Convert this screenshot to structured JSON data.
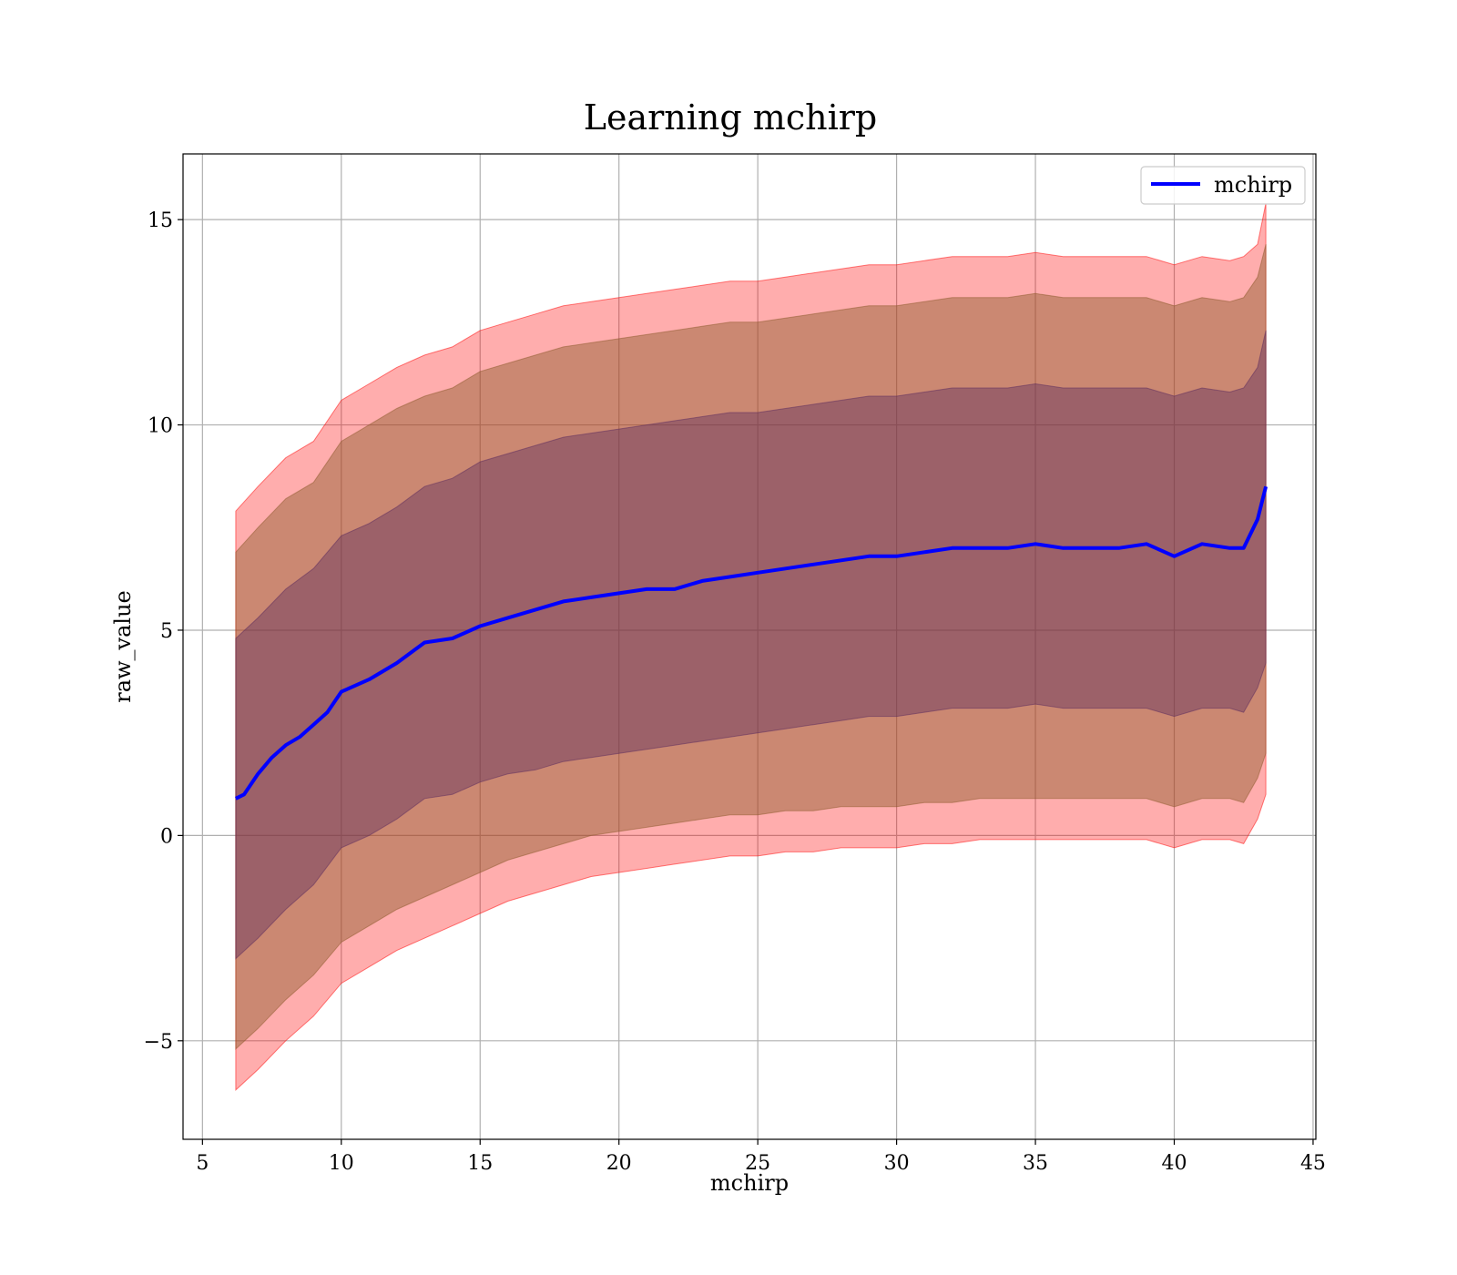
{
  "chart_data": {
    "type": "line",
    "title": "Learning mchirp",
    "xlabel": "mchirp",
    "ylabel": "raw_value",
    "xlim": [
      4.3,
      45.1
    ],
    "ylim": [
      -7.4,
      16.6
    ],
    "xticks": [
      5,
      10,
      15,
      20,
      25,
      30,
      35,
      40,
      45
    ],
    "yticks": [
      -5,
      0,
      5,
      10,
      15
    ],
    "ytick_labels": [
      "−5",
      "0",
      "5",
      "10",
      "15"
    ],
    "grid": true,
    "legend": {
      "position": "top-right",
      "entries": [
        {
          "label": "mchirp",
          "color": "#0000ff"
        }
      ]
    },
    "series": [
      {
        "name": "mchirp",
        "color": "#0000ff",
        "x": [
          6.2,
          6.5,
          7.0,
          7.5,
          8.0,
          8.5,
          9.0,
          9.5,
          10.0,
          11.0,
          12.0,
          13.0,
          14.0,
          15.0,
          16.0,
          17.0,
          18.0,
          19.0,
          20.0,
          21.0,
          22.0,
          23.0,
          24.0,
          25.0,
          26.0,
          27.0,
          28.0,
          29.0,
          30.0,
          31.0,
          32.0,
          33.0,
          34.0,
          35.0,
          36.0,
          37.0,
          38.0,
          39.0,
          40.0,
          41.0,
          42.0,
          42.5,
          43.0,
          43.3
        ],
        "y": [
          0.9,
          1.0,
          1.5,
          1.9,
          2.2,
          2.4,
          2.7,
          3.0,
          3.5,
          3.8,
          4.2,
          4.7,
          4.8,
          5.1,
          5.3,
          5.5,
          5.7,
          5.8,
          5.9,
          6.0,
          6.0,
          6.2,
          6.3,
          6.4,
          6.5,
          6.6,
          6.7,
          6.8,
          6.8,
          6.9,
          7.0,
          7.0,
          7.0,
          7.1,
          7.0,
          7.0,
          7.0,
          7.1,
          6.8,
          7.1,
          7.0,
          7.0,
          7.7,
          8.5
        ]
      }
    ],
    "bands": [
      {
        "name": "",
        "color": "#ff0000",
        "opacity": 0.32,
        "x": [
          6.2,
          7.0,
          8.0,
          9.0,
          10.0,
          11.0,
          12.0,
          13.0,
          14.0,
          15.0,
          16.0,
          17.0,
          18.0,
          19.0,
          20.0,
          21.0,
          22.0,
          23.0,
          24.0,
          25.0,
          26.0,
          27.0,
          28.0,
          29.0,
          30.0,
          31.0,
          32.0,
          33.0,
          34.0,
          35.0,
          36.0,
          37.0,
          38.0,
          39.0,
          40.0,
          41.0,
          42.0,
          42.5,
          43.0,
          43.3
        ],
        "upper": [
          7.9,
          8.5,
          9.2,
          9.6,
          10.6,
          11.0,
          11.4,
          11.7,
          11.9,
          12.3,
          12.5,
          12.7,
          12.9,
          13.0,
          13.1,
          13.2,
          13.3,
          13.4,
          13.5,
          13.5,
          13.6,
          13.7,
          13.8,
          13.9,
          13.9,
          14.0,
          14.1,
          14.1,
          14.1,
          14.2,
          14.1,
          14.1,
          14.1,
          14.1,
          13.9,
          14.1,
          14.0,
          14.1,
          14.4,
          15.4
        ],
        "lower": [
          -6.2,
          -5.7,
          -5.0,
          -4.4,
          -3.6,
          -3.2,
          -2.8,
          -2.5,
          -2.2,
          -1.9,
          -1.6,
          -1.4,
          -1.2,
          -1.0,
          -0.9,
          -0.8,
          -0.7,
          -0.6,
          -0.5,
          -0.5,
          -0.4,
          -0.4,
          -0.3,
          -0.3,
          -0.3,
          -0.2,
          -0.2,
          -0.1,
          -0.1,
          -0.1,
          -0.1,
          -0.1,
          -0.1,
          -0.1,
          -0.3,
          -0.1,
          -0.1,
          -0.2,
          0.4,
          1.0
        ]
      },
      {
        "name": "",
        "color": "#8b5a2b",
        "opacity": 0.45,
        "x": [
          6.2,
          7.0,
          8.0,
          9.0,
          10.0,
          11.0,
          12.0,
          13.0,
          14.0,
          15.0,
          16.0,
          17.0,
          18.0,
          19.0,
          20.0,
          21.0,
          22.0,
          23.0,
          24.0,
          25.0,
          26.0,
          27.0,
          28.0,
          29.0,
          30.0,
          31.0,
          32.0,
          33.0,
          34.0,
          35.0,
          36.0,
          37.0,
          38.0,
          39.0,
          40.0,
          41.0,
          42.0,
          42.5,
          43.0,
          43.3
        ],
        "upper": [
          6.9,
          7.5,
          8.2,
          8.6,
          9.6,
          10.0,
          10.4,
          10.7,
          10.9,
          11.3,
          11.5,
          11.7,
          11.9,
          12.0,
          12.1,
          12.2,
          12.3,
          12.4,
          12.5,
          12.5,
          12.6,
          12.7,
          12.8,
          12.9,
          12.9,
          13.0,
          13.1,
          13.1,
          13.1,
          13.2,
          13.1,
          13.1,
          13.1,
          13.1,
          12.9,
          13.1,
          13.0,
          13.1,
          13.6,
          14.4
        ],
        "lower": [
          -5.2,
          -4.7,
          -4.0,
          -3.4,
          -2.6,
          -2.2,
          -1.8,
          -1.5,
          -1.2,
          -0.9,
          -0.6,
          -0.4,
          -0.2,
          0.0,
          0.1,
          0.2,
          0.3,
          0.4,
          0.5,
          0.5,
          0.6,
          0.6,
          0.7,
          0.7,
          0.7,
          0.8,
          0.8,
          0.9,
          0.9,
          0.9,
          0.9,
          0.9,
          0.9,
          0.9,
          0.7,
          0.9,
          0.9,
          0.8,
          1.4,
          2.0
        ]
      },
      {
        "name": "",
        "color": "#5a2a5e",
        "opacity": 0.42,
        "x": [
          6.2,
          7.0,
          8.0,
          9.0,
          10.0,
          11.0,
          12.0,
          13.0,
          14.0,
          15.0,
          16.0,
          17.0,
          18.0,
          19.0,
          20.0,
          21.0,
          22.0,
          23.0,
          24.0,
          25.0,
          26.0,
          27.0,
          28.0,
          29.0,
          30.0,
          31.0,
          32.0,
          33.0,
          34.0,
          35.0,
          36.0,
          37.0,
          38.0,
          39.0,
          40.0,
          41.0,
          42.0,
          42.5,
          43.0,
          43.3
        ],
        "upper": [
          4.8,
          5.3,
          6.0,
          6.5,
          7.3,
          7.6,
          8.0,
          8.5,
          8.7,
          9.1,
          9.3,
          9.5,
          9.7,
          9.8,
          9.9,
          10.0,
          10.1,
          10.2,
          10.3,
          10.3,
          10.4,
          10.5,
          10.6,
          10.7,
          10.7,
          10.8,
          10.9,
          10.9,
          10.9,
          11.0,
          10.9,
          10.9,
          10.9,
          10.9,
          10.7,
          10.9,
          10.8,
          10.9,
          11.4,
          12.3
        ],
        "lower": [
          -3.0,
          -2.5,
          -1.8,
          -1.2,
          -0.3,
          0.0,
          0.4,
          0.9,
          1.0,
          1.3,
          1.5,
          1.6,
          1.8,
          1.9,
          2.0,
          2.1,
          2.2,
          2.3,
          2.4,
          2.5,
          2.6,
          2.7,
          2.8,
          2.9,
          2.9,
          3.0,
          3.1,
          3.1,
          3.1,
          3.2,
          3.1,
          3.1,
          3.1,
          3.1,
          2.9,
          3.1,
          3.1,
          3.0,
          3.6,
          4.2
        ]
      }
    ]
  }
}
